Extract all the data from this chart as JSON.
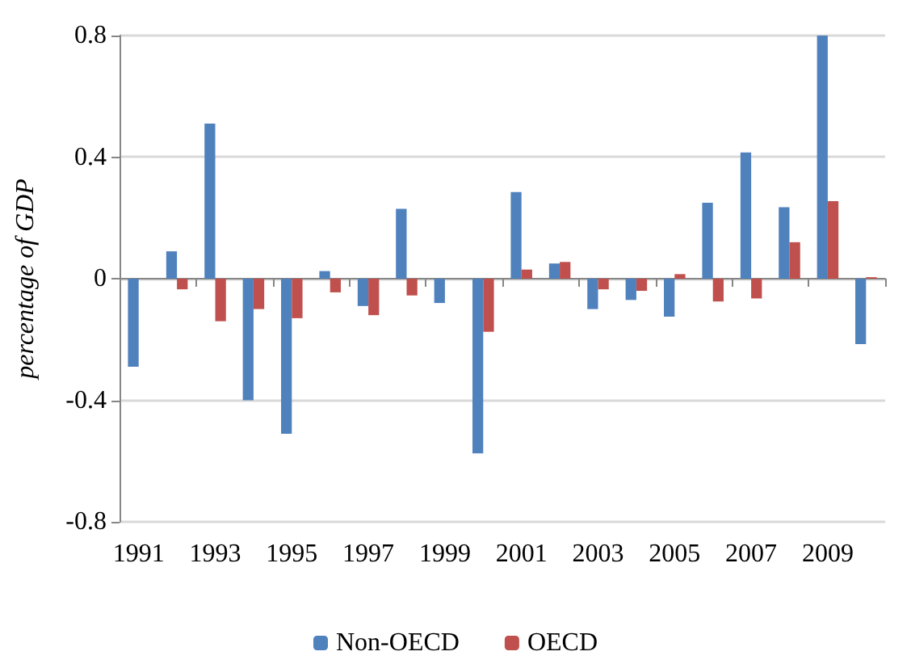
{
  "chart_data": {
    "type": "bar",
    "ylabel": "percentage of GDP",
    "categories": [
      "1991",
      null,
      "1993",
      null,
      "1995",
      null,
      "1997",
      null,
      "1999",
      null,
      "2001",
      null,
      "2003",
      null,
      "2005",
      null,
      "2007",
      null,
      "2009",
      null
    ],
    "series": [
      {
        "name": "Non-OECD",
        "color": "#4f81bd",
        "values": [
          -0.29,
          0.09,
          0.51,
          -0.4,
          -0.51,
          0.025,
          -0.09,
          0.23,
          -0.08,
          -0.575,
          0.285,
          0.05,
          -0.1,
          -0.07,
          -0.125,
          0.25,
          0.415,
          0.235,
          0.8,
          -0.215
        ]
      },
      {
        "name": "OECD",
        "color": "#c0504d",
        "values": [
          0,
          -0.035,
          -0.14,
          -0.1,
          -0.13,
          -0.045,
          -0.12,
          -0.055,
          0,
          -0.175,
          0.03,
          0.055,
          -0.035,
          -0.04,
          0.015,
          -0.075,
          -0.065,
          0.12,
          0.255,
          0.005
        ]
      }
    ],
    "ylim": [
      -0.8,
      0.8
    ],
    "yticks": [
      -0.8,
      -0.4,
      0,
      0.4,
      0.8
    ],
    "grid": "y",
    "legend": "bottom"
  }
}
